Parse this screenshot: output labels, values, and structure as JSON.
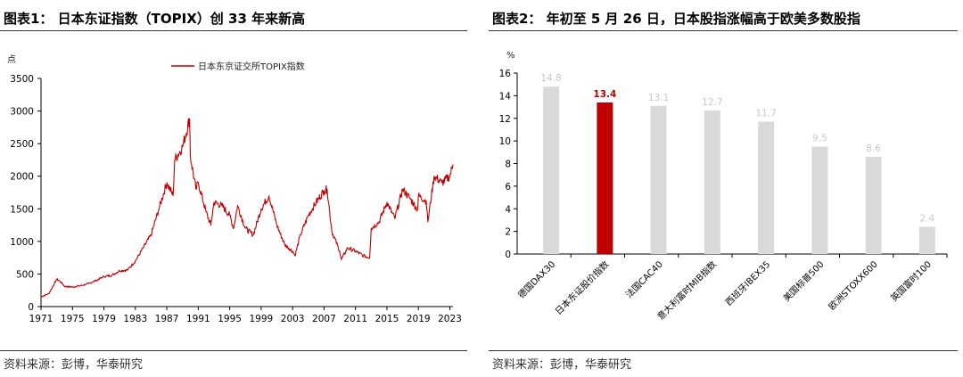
{
  "left": {
    "title": "图表1： 日本东证指数（TOPIX）创 33 年来新高",
    "source": "资料来源：彭博，华泰研究",
    "chart_data": {
      "type": "line",
      "ylabel": "点",
      "ylim": [
        0,
        3500
      ],
      "yticks": [
        0,
        500,
        1000,
        1500,
        2000,
        2500,
        3000,
        3500
      ],
      "xlim": [
        1971,
        2023.4
      ],
      "xticks": [
        "1971",
        "1975",
        "1979",
        "1983",
        "1987",
        "1991",
        "1995",
        "1999",
        "2003",
        "2007",
        "2011",
        "2015",
        "2019",
        "2023"
      ],
      "legend": "top-center",
      "series": [
        {
          "name": "日本东京证交所TOPIX指数",
          "color": "#c00000",
          "x": [
            1971,
            1972,
            1973,
            1973.5,
            1974,
            1975,
            1976,
            1977,
            1978,
            1979,
            1980,
            1981,
            1982,
            1983,
            1984,
            1985,
            1986,
            1987,
            1987.8,
            1988,
            1989,
            1989.9,
            1990,
            1990.7,
            1991,
            1992,
            1992.6,
            1993,
            1994,
            1995,
            1995.5,
            1996,
            1997,
            1998,
            1999,
            2000,
            2001,
            2002,
            2003,
            2003.3,
            2004,
            2005,
            2006,
            2007,
            2007.4,
            2008,
            2009,
            2009.2,
            2010,
            2011,
            2012,
            2012.8,
            2013,
            2014,
            2015,
            2016,
            2017,
            2018,
            2018.9,
            2019,
            2020,
            2020.2,
            2021,
            2022,
            2023,
            2023.4
          ],
          "values": [
            150,
            200,
            420,
            380,
            310,
            300,
            320,
            350,
            400,
            460,
            480,
            550,
            560,
            700,
            900,
            1100,
            1500,
            1900,
            1700,
            2250,
            2450,
            2880,
            2300,
            1800,
            1900,
            1450,
            1250,
            1600,
            1550,
            1400,
            1200,
            1550,
            1200,
            1100,
            1500,
            1700,
            1250,
            950,
            850,
            780,
            1100,
            1400,
            1600,
            1780,
            1800,
            1150,
            850,
            720,
            900,
            850,
            780,
            750,
            1200,
            1300,
            1600,
            1350,
            1800,
            1650,
            1480,
            1700,
            1620,
            1300,
            2000,
            1900,
            2000,
            2180
          ]
        }
      ]
    }
  },
  "right": {
    "title": "图表2： 年初至 5 月 26 日，日本股指涨幅高于欧美多数股指",
    "source": "资料来源：彭博，华泰研究",
    "chart_data": {
      "type": "bar",
      "ylabel": "%",
      "ylim": [
        0,
        16
      ],
      "yticks": [
        0,
        2,
        4,
        6,
        8,
        10,
        12,
        14,
        16
      ],
      "categories": [
        "德国DAX30",
        "日本东证股价指数",
        "法国CAC40",
        "意大利富时MIB指数",
        "西班牙IBEX35",
        "美国标普500",
        "欧洲STOXX600",
        "英国富时100"
      ],
      "values": [
        14.8,
        13.4,
        13.1,
        12.7,
        11.7,
        9.5,
        8.6,
        2.4
      ],
      "data_labels": [
        "14.8",
        "13.4",
        "13.1",
        "12.7",
        "11.7",
        "9.5",
        "8.6",
        "2.4"
      ],
      "colors": [
        "#d9d9d9",
        "#c00000",
        "#d9d9d9",
        "#d9d9d9",
        "#d9d9d9",
        "#d9d9d9",
        "#d9d9d9",
        "#d9d9d9"
      ],
      "highlight_label_color": "#c00000",
      "label_color": "#c8c8c8"
    }
  }
}
